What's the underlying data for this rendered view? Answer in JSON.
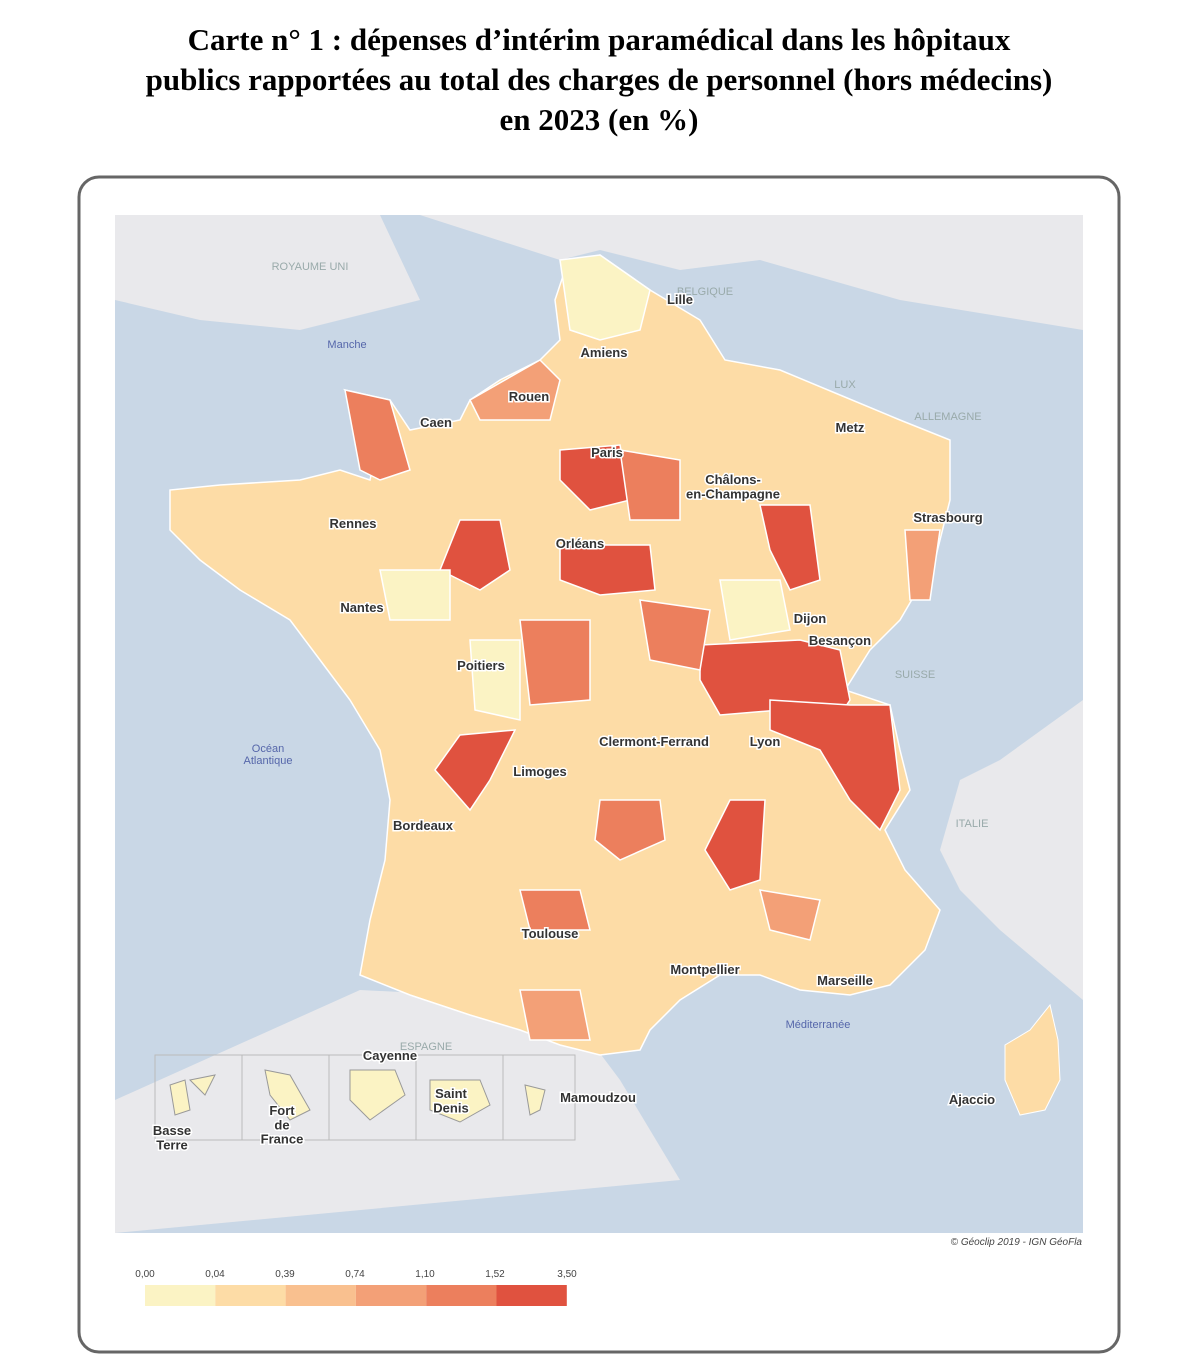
{
  "title_lines": [
    "Carte n° 1 : dépenses d’intérim paramédical dans les hôpitaux",
    "publics rapportées au total des charges de personnel (hors médecins)",
    "en 2023 (en %)"
  ],
  "map": {
    "countries": [
      "ROYAUME UNI",
      "BELGIQUE",
      "LUX",
      "ALLEMAGNE",
      "SUISSE",
      "ITALIE",
      "ESPAGNE"
    ],
    "seas": [
      "Manche",
      "Océan\nAtlantique",
      "Méditerranée"
    ],
    "cities": [
      "Lille",
      "Amiens",
      "Rouen",
      "Caen",
      "Paris",
      "Châlons-\nen-Champagne",
      "Metz",
      "Strasbourg",
      "Rennes",
      "Orléans",
      "Nantes",
      "Dijon",
      "Besançon",
      "Poitiers",
      "Clermont-Ferrand",
      "Lyon",
      "Limoges",
      "Bordeaux",
      "Toulouse",
      "Montpellier",
      "Marseille",
      "Ajaccio"
    ],
    "overseas": [
      "Cayenne",
      "Basse\nTerre",
      "Fort\nde\nFrance",
      "Saint\nDenis",
      "Mamoudzou"
    ],
    "credit": "© Géoclip 2019 - IGN GéoFla"
  },
  "legend": {
    "breaks": [
      "0,00",
      "0,04",
      "0,39",
      "0,74",
      "1,10",
      "1,52",
      "3,50"
    ],
    "colors": [
      "#fbf3c4",
      "#fddca6",
      "#f9c08f",
      "#f3a077",
      "#ec7f5d",
      "#e0523f"
    ]
  }
}
